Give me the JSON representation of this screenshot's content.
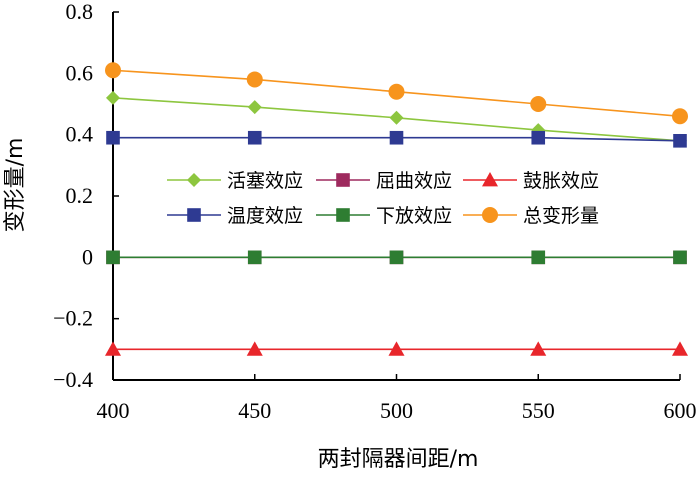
{
  "chart_data": {
    "type": "line",
    "xlabel": "两封隔器间距/m",
    "ylabel": "变形量/m",
    "x": [
      400,
      450,
      500,
      550,
      600
    ],
    "xlim": [
      400,
      600
    ],
    "ylim": [
      -0.4,
      0.8
    ],
    "x_ticks": [
      "400",
      "450",
      "500",
      "550",
      "600"
    ],
    "y_ticks": [
      "−0.4",
      "−0.2",
      "0",
      "0.2",
      "0.4",
      "0.6",
      "0.8"
    ],
    "y_tick_values": [
      -0.4,
      -0.2,
      0,
      0.2,
      0.4,
      0.6,
      0.8
    ],
    "grid": false,
    "legend_position": "center",
    "series": [
      {
        "name": "活塞效应",
        "values": [
          0.52,
          0.49,
          0.455,
          0.415,
          0.38
        ],
        "color": "#8dc63f",
        "marker": "diamond"
      },
      {
        "name": "屈曲效应",
        "values": [
          0,
          0,
          0,
          0,
          0
        ],
        "color": "#9e2a5e",
        "marker": "square"
      },
      {
        "name": "鼓胀效应",
        "values": [
          -0.3,
          -0.3,
          -0.3,
          -0.3,
          -0.3
        ],
        "color": "#e8262b",
        "marker": "triangle"
      },
      {
        "name": "温度效应",
        "values": [
          0.39,
          0.39,
          0.39,
          0.39,
          0.38
        ],
        "color": "#2e3a92",
        "marker": "square"
      },
      {
        "name": "下放效应",
        "values": [
          0,
          0,
          0,
          0,
          0
        ],
        "color": "#2e7d32",
        "marker": "square"
      },
      {
        "name": "总变形量",
        "values": [
          0.61,
          0.58,
          0.54,
          0.5,
          0.46
        ],
        "color": "#f7941d",
        "marker": "circle"
      }
    ]
  }
}
